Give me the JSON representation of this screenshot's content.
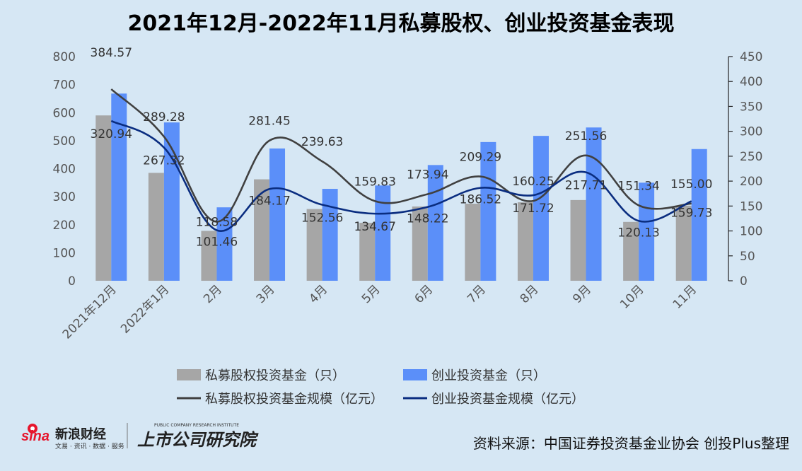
{
  "title": "2021年12月-2022年11月私募股权、创业投资基金表现",
  "source": "资料来源：中国证券投资基金业协会 创投Plus整理",
  "logos": {
    "sina_brand": "新浪财经",
    "sina_sub": "文易 · 资讯 · 数据 · 服务",
    "shangshi": "上市公司研究院",
    "shangshi_sub": "PUBLIC COMPANY RESEARCH INSTITUTE"
  },
  "colors": {
    "pe_count_bar": "#a6a6a6",
    "vc_count_bar": "#5b8ff9",
    "pe_scale_line": "#404040",
    "vc_scale_line": "#0a2d80"
  },
  "chart_data": {
    "type": "bar",
    "title": "2021年12月-2022年11月私募股权、创业投资基金表现",
    "categories": [
      "2021年12月",
      "2022年1月",
      "2月",
      "3月",
      "4月",
      "5月",
      "6月",
      "7月",
      "8月",
      "9月",
      "10月",
      "11月"
    ],
    "y_left": {
      "min": 0,
      "max": 800,
      "ticks": [
        0,
        100,
        200,
        300,
        400,
        500,
        600,
        700,
        800
      ]
    },
    "y_right": {
      "min": 0,
      "max": 450,
      "ticks": [
        0,
        50,
        100,
        150,
        200,
        250,
        300,
        350,
        400,
        450
      ]
    },
    "series": [
      {
        "name": "私募股权投资基金（只）",
        "type": "bar",
        "axis": "left",
        "values": [
          590,
          385,
          178,
          362,
          256,
          207,
          265,
          275,
          280,
          288,
          210,
          268
        ]
      },
      {
        "name": "创业投资基金（只）",
        "type": "bar",
        "axis": "left",
        "values": [
          668,
          565,
          262,
          472,
          328,
          340,
          413,
          495,
          517,
          547,
          350,
          470
        ]
      },
      {
        "name": "私募股权投资基金规模（亿元）",
        "type": "line",
        "axis": "right",
        "values": [
          384.57,
          289.28,
          118.58,
          281.45,
          239.63,
          159.83,
          173.94,
          209.29,
          160.25,
          251.56,
          151.34,
          155.0
        ],
        "labels": [
          "384.57",
          "289.28",
          "118.58",
          "281.45",
          "239.63",
          "159.83",
          "173.94",
          "209.29",
          "160.25",
          "251.56",
          "151.34",
          "155.00"
        ]
      },
      {
        "name": "创业投资基金规模（亿元）",
        "type": "line",
        "axis": "right",
        "values": [
          320.94,
          267.32,
          101.46,
          184.17,
          152.56,
          134.67,
          148.22,
          186.52,
          171.72,
          217.71,
          120.13,
          159.73
        ],
        "labels": [
          "320.94",
          "267.32",
          "101.46",
          "184.17",
          "152.56",
          "134.67",
          "148.22",
          "186.52",
          "171.72",
          "217.71",
          "120.13",
          "159.73"
        ]
      }
    ],
    "legend_position": "bottom",
    "grid": false
  }
}
